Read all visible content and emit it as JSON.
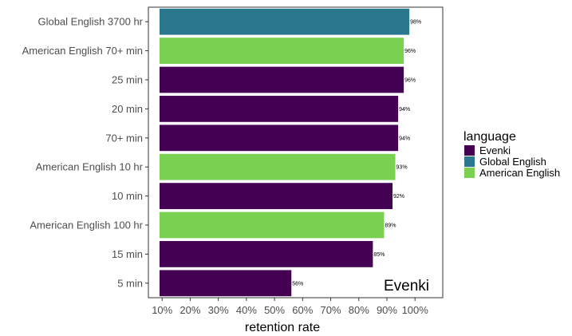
{
  "chart_data": {
    "type": "bar",
    "orientation": "horizontal",
    "categories": [
      "Global English 3700 hr",
      "American English 70+ min",
      "25 min",
      "20 min",
      "70+ min",
      "American English 10 hr",
      "10 min",
      "American English 100 hr",
      "15 min",
      "5 min"
    ],
    "values": [
      98,
      96,
      96,
      94,
      94,
      93,
      92,
      89,
      85,
      56
    ],
    "value_labels": [
      "98%",
      "96%",
      "96%",
      "94%",
      "94%",
      "93%",
      "92%",
      "89%",
      "85%",
      "56%"
    ],
    "group": [
      "Global English",
      "American English",
      "Evenki",
      "Evenki",
      "Evenki",
      "American English",
      "Evenki",
      "American English",
      "Evenki",
      "Evenki"
    ],
    "xlabel": "retention rate",
    "ylabel": "",
    "xlim": [
      0,
      100
    ],
    "xticks": [
      10,
      20,
      30,
      40,
      50,
      60,
      70,
      80,
      90,
      100
    ],
    "xtick_labels": [
      "10%",
      "20%",
      "30%",
      "40%",
      "50%",
      "60%",
      "70%",
      "80%",
      "90%",
      "100%"
    ],
    "grid": false,
    "annotation": "Evenki",
    "legend": {
      "title": "language",
      "placement": "right",
      "entries": [
        {
          "name": "Evenki",
          "color": "#440154"
        },
        {
          "name": "Global English",
          "color": "#2a788e"
        },
        {
          "name": "American English",
          "color": "#7ad151"
        }
      ]
    }
  }
}
